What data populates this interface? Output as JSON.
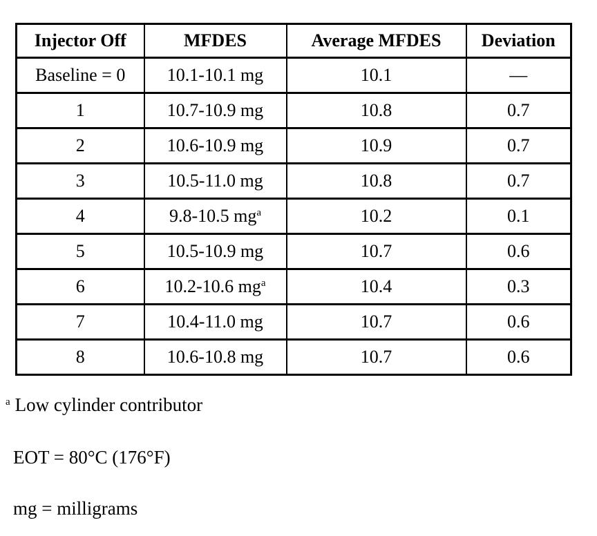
{
  "table": {
    "headers": [
      "Injector Off",
      "MFDES",
      "Average MFDES",
      "Deviation"
    ],
    "rows": [
      {
        "injector": "Baseline = 0",
        "mfdes": "10.1-10.1 mg",
        "mfdes_sup": "",
        "average": "10.1",
        "deviation": "—"
      },
      {
        "injector": "1",
        "mfdes": "10.7-10.9 mg",
        "mfdes_sup": "",
        "average": "10.8",
        "deviation": "0.7"
      },
      {
        "injector": "2",
        "mfdes": "10.6-10.9 mg",
        "mfdes_sup": "",
        "average": "10.9",
        "deviation": "0.7"
      },
      {
        "injector": "3",
        "mfdes": "10.5-11.0 mg",
        "mfdes_sup": "",
        "average": "10.8",
        "deviation": "0.7"
      },
      {
        "injector": "4",
        "mfdes": "9.8-10.5 mg",
        "mfdes_sup": "a",
        "average": "10.2",
        "deviation": "0.1"
      },
      {
        "injector": "5",
        "mfdes": "10.5-10.9 mg",
        "mfdes_sup": "",
        "average": "10.7",
        "deviation": "0.6"
      },
      {
        "injector": "6",
        "mfdes": "10.2-10.6 mg",
        "mfdes_sup": "a",
        "average": "10.4",
        "deviation": "0.3"
      },
      {
        "injector": "7",
        "mfdes": "10.4-11.0 mg",
        "mfdes_sup": "",
        "average": "10.7",
        "deviation": "0.6"
      },
      {
        "injector": "8",
        "mfdes": "10.6-10.8 mg",
        "mfdes_sup": "",
        "average": "10.7",
        "deviation": "0.6"
      }
    ]
  },
  "footnotes": {
    "marker": "a",
    "cylinder_note": "Low cylinder contributor",
    "eot_note": "EOT = 80°C (176°F)",
    "mg_note": "mg = milligrams"
  },
  "colors": {
    "background": "#ffffff",
    "text": "#000000",
    "border": "#000000"
  }
}
